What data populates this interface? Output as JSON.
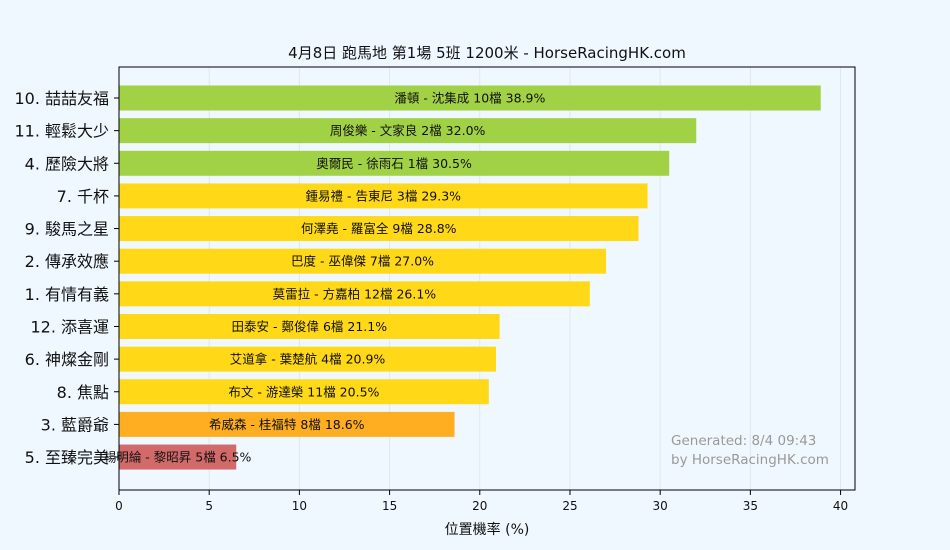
{
  "chart_data": {
    "type": "bar",
    "orientation": "horizontal",
    "title": "4月8日  跑馬地  第1場  5班  1200米 - HorseRacingHK.com",
    "xlabel": "位置機率 (%)",
    "ylabel": "",
    "xlim": [
      0,
      40.8
    ],
    "xticks": [
      0,
      5,
      10,
      15,
      20,
      25,
      30,
      35,
      40
    ],
    "grid": true,
    "categories": [
      "10. 喆喆友福",
      "11. 輕鬆大少",
      "4. 歷險大將",
      "7. 千杯",
      "9. 駿馬之星",
      "2. 傳承效應",
      "1. 有情有義",
      "12. 添喜運",
      "6. 神燦金剛",
      "8. 焦點",
      "3. 藍爵爺",
      "5. 至臻完美"
    ],
    "values": [
      38.9,
      32.0,
      30.5,
      29.3,
      28.8,
      27.0,
      26.1,
      21.1,
      20.9,
      20.5,
      18.6,
      6.5
    ],
    "bar_labels": [
      "潘頓 - 沈集成 10檔  38.9%",
      "周俊樂 - 文家良 2檔  32.0%",
      "奧爾民 - 徐雨石 1檔  30.5%",
      "鍾易禮 - 告東尼 3檔  29.3%",
      "何澤堯 - 羅富全 9檔  28.8%",
      "巴度 - 巫偉傑 7檔  27.0%",
      "莫雷拉 - 方嘉柏 12檔  26.1%",
      "田泰安 - 鄭俊偉 6檔  21.1%",
      "艾道拿 - 葉楚航 4檔  20.9%",
      "布文 - 游達榮 11檔  20.5%",
      "希威森 - 桂福特 8檔  18.6%",
      "楊明綸 - 黎昭昇 5檔  6.5%"
    ],
    "bar_colors": [
      "#a1d145",
      "#a1d145",
      "#a1d145",
      "#ffd817",
      "#ffd817",
      "#ffd817",
      "#ffd817",
      "#ffd817",
      "#ffd817",
      "#ffd817",
      "#ffae21",
      "#d26a6a"
    ]
  },
  "watermark": {
    "line1": "Generated: 8/4 09:43",
    "line2": "by HorseRacingHK.com"
  }
}
